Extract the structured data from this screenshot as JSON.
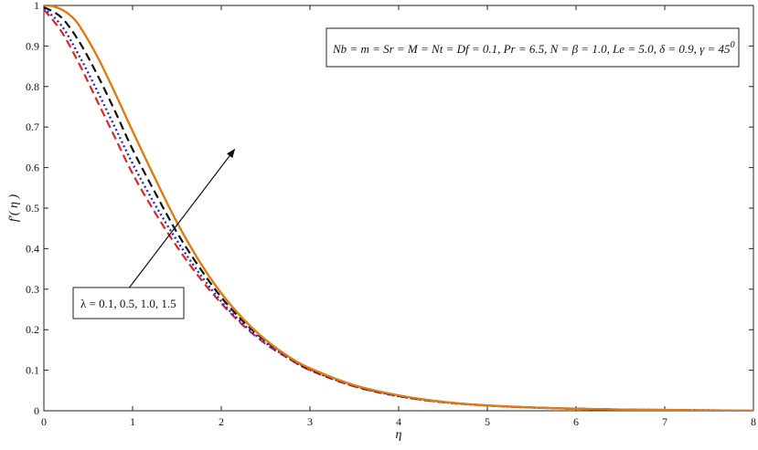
{
  "chart_data": {
    "type": "line",
    "xlabel": "η",
    "ylabel": "f′( η )",
    "xlim": [
      0,
      8
    ],
    "ylim": [
      0,
      1
    ],
    "xticks": [
      0,
      1,
      2,
      3,
      4,
      5,
      6,
      7,
      8
    ],
    "xtick_labels": [
      "0",
      "1",
      "2",
      "3",
      "4",
      "5",
      "6",
      "7",
      "8"
    ],
    "yticks": [
      0,
      0.1,
      0.2,
      0.3,
      0.4,
      0.5,
      0.6,
      0.7,
      0.8,
      0.9,
      1
    ],
    "ytick_labels": [
      "0",
      "0.1",
      "0.2",
      "0.3",
      "0.4",
      "0.5",
      "0.6",
      "0.7",
      "0.8",
      "0.9",
      "1"
    ],
    "grid": false,
    "parameter_box": "Nb = m = Sr = M = Nt = Df = 0.1, Pr = 6.5, N = β = 1.0, Le = 5.0, δ = 0.9, γ = 45",
    "parameter_box_superscript": "0",
    "arrow_label": "λ = 0.1, 0.5, 1.0, 1.5",
    "arrow": {
      "from": [
        0.95,
        0.3
      ],
      "to": [
        2.15,
        0.645
      ]
    },
    "series": [
      {
        "color": "#e8231f",
        "dash": "dashed",
        "x": [
          0,
          0.2,
          0.4,
          0.6,
          0.8,
          1.0,
          1.25,
          1.5,
          1.75,
          2.0,
          2.25,
          2.5,
          2.75,
          3.0,
          3.5,
          4.0,
          4.5,
          5.0,
          5.5,
          6.0,
          6.5,
          7.0,
          7.5
        ],
        "y": [
          0.99,
          0.935,
          0.855,
          0.765,
          0.675,
          0.585,
          0.49,
          0.405,
          0.33,
          0.265,
          0.21,
          0.165,
          0.13,
          0.1,
          0.06,
          0.036,
          0.021,
          0.013,
          0.008,
          0.005,
          0.003,
          0.002,
          0.001
        ]
      },
      {
        "color": "#1f2ad6",
        "dash": "dotted",
        "x": [
          0,
          0.2,
          0.4,
          0.6,
          0.8,
          1.0,
          1.25,
          1.5,
          1.75,
          2.0,
          2.25,
          2.5,
          2.75,
          3.0,
          3.5,
          4.0,
          4.5,
          5.0,
          5.5,
          6.0,
          6.5,
          7.0,
          7.6
        ],
        "y": [
          0.993,
          0.95,
          0.875,
          0.79,
          0.7,
          0.61,
          0.51,
          0.42,
          0.34,
          0.27,
          0.213,
          0.168,
          0.131,
          0.101,
          0.061,
          0.036,
          0.021,
          0.013,
          0.008,
          0.005,
          0.003,
          0.002,
          0.001
        ]
      },
      {
        "color": "#111111",
        "dash": "dashed",
        "x": [
          0,
          0.2,
          0.4,
          0.6,
          0.8,
          1.0,
          1.25,
          1.5,
          1.75,
          2.0,
          2.25,
          2.5,
          2.75,
          3.0,
          3.5,
          4.0,
          4.5,
          5.0,
          5.5,
          6.0,
          6.5
        ],
        "y": [
          0.996,
          0.97,
          0.91,
          0.83,
          0.74,
          0.645,
          0.54,
          0.44,
          0.355,
          0.28,
          0.22,
          0.172,
          0.134,
          0.103,
          0.062,
          0.037,
          0.022,
          0.013,
          0.008,
          0.005,
          0.003
        ]
      },
      {
        "color": "#e07b12",
        "dash": "solid",
        "x": [
          0,
          0.1,
          0.2,
          0.3,
          0.4,
          0.6,
          0.8,
          1.0,
          1.25,
          1.5,
          1.75,
          2.0,
          2.25,
          2.5,
          2.75,
          3.0,
          3.5,
          4.0,
          4.5,
          5.0,
          5.5,
          6.0,
          6.5,
          7.0,
          7.5,
          8.0
        ],
        "y": [
          1.0,
          0.998,
          0.99,
          0.975,
          0.95,
          0.875,
          0.785,
          0.69,
          0.575,
          0.465,
          0.37,
          0.29,
          0.226,
          0.175,
          0.135,
          0.105,
          0.063,
          0.038,
          0.022,
          0.013,
          0.008,
          0.005,
          0.003,
          0.002,
          0.001,
          0.0005
        ]
      }
    ]
  }
}
